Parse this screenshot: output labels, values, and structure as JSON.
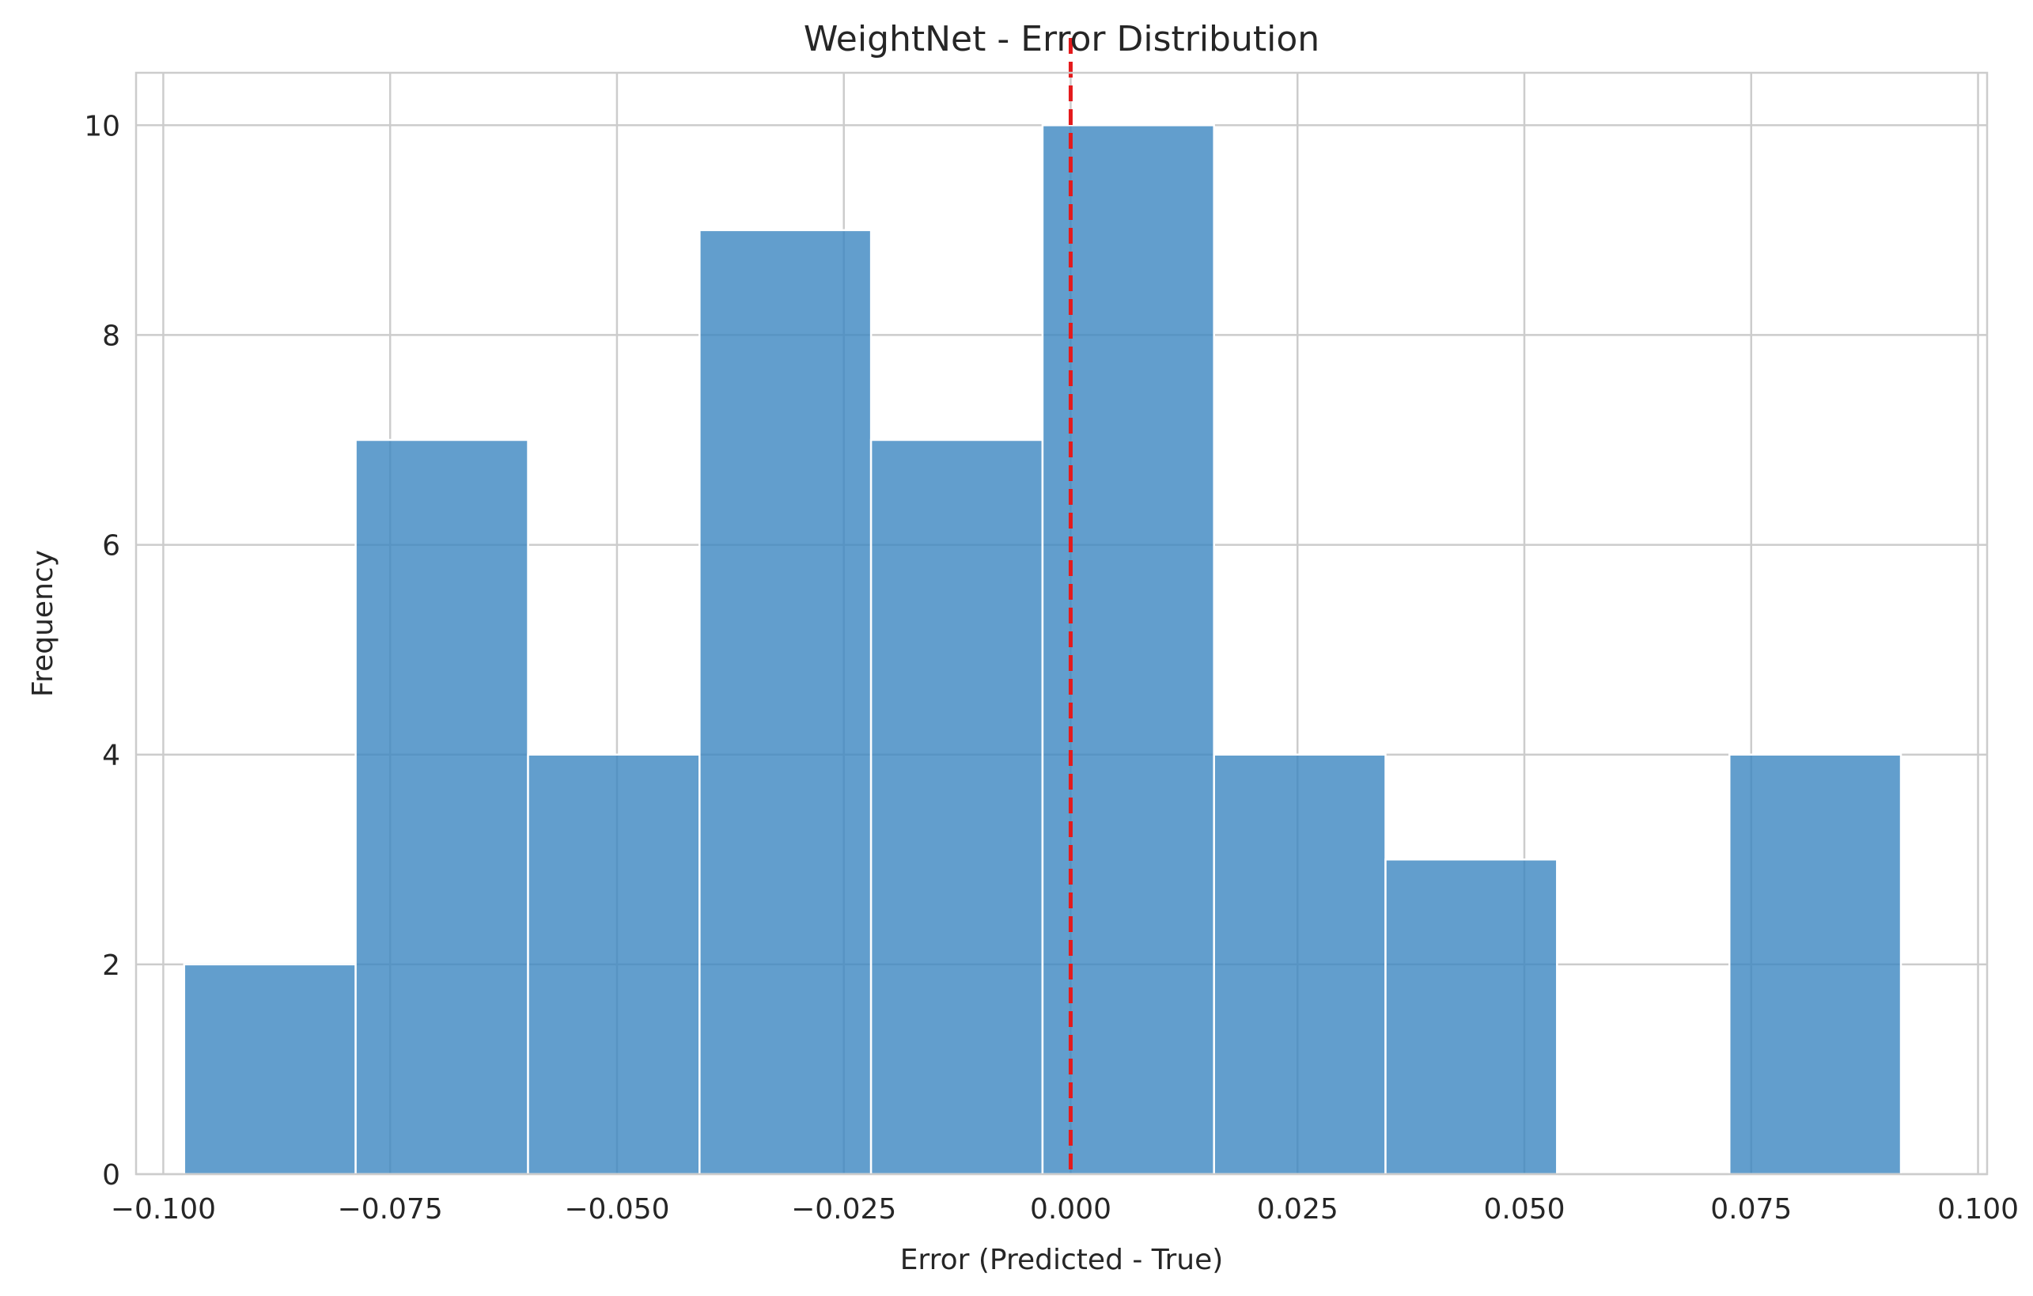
{
  "chart_data": {
    "type": "bar",
    "title": "WeightNet - Error Distribution",
    "xlabel": "Error (Predicted - True)",
    "ylabel": "Frequency",
    "xlim": [
      -0.103,
      0.101
    ],
    "ylim": [
      0,
      10.5
    ],
    "xticks": [
      -0.1,
      -0.075,
      -0.05,
      -0.025,
      0.0,
      0.025,
      0.05,
      0.075,
      0.1
    ],
    "xtick_labels": [
      "−0.100",
      "−0.075",
      "−0.050",
      "−0.025",
      "0.000",
      "0.025",
      "0.050",
      "0.075",
      "0.100"
    ],
    "yticks": [
      0,
      2,
      4,
      6,
      8,
      10
    ],
    "ytick_labels": [
      "0",
      "2",
      "4",
      "6",
      "8",
      "10"
    ],
    "bins": [
      {
        "start": -0.0977,
        "end": -0.0788,
        "count": 2
      },
      {
        "start": -0.0788,
        "end": -0.0598,
        "count": 7
      },
      {
        "start": -0.0598,
        "end": -0.0409,
        "count": 4
      },
      {
        "start": -0.0409,
        "end": -0.022,
        "count": 9
      },
      {
        "start": -0.022,
        "end": -0.0031,
        "count": 7
      },
      {
        "start": -0.0031,
        "end": 0.0158,
        "count": 10
      },
      {
        "start": 0.0158,
        "end": 0.0347,
        "count": 4
      },
      {
        "start": 0.0347,
        "end": 0.0536,
        "count": 3
      },
      {
        "start": 0.0536,
        "end": 0.0726,
        "count": 0
      },
      {
        "start": 0.0726,
        "end": 0.0915,
        "count": 4
      }
    ],
    "reference_line": {
      "x": 0.0,
      "style": "dashed",
      "color": "#e41a1c"
    },
    "bar_color": "#3b86c0",
    "grid": true,
    "legend": "none"
  }
}
